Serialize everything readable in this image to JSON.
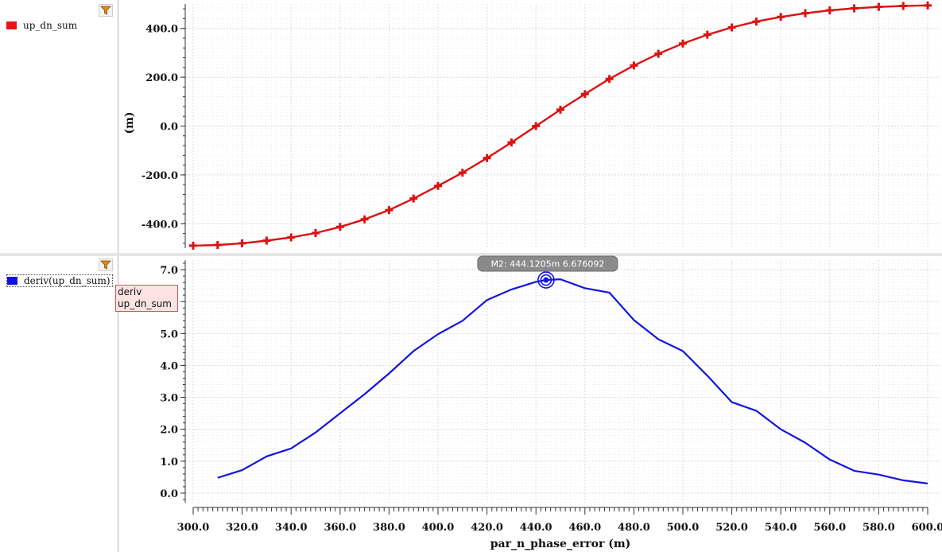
{
  "legend": {
    "top": {
      "label": "up_dn_sum",
      "color": "#ee1111"
    },
    "bottom": {
      "label": "deriv(up_dn_sum)",
      "color": "#1111dd"
    }
  },
  "icons": {
    "filter": "filter-funnel-icon"
  },
  "tag": {
    "line1": "deriv",
    "line2": "up_dn_sum"
  },
  "chart_data": [
    {
      "type": "line",
      "title": "",
      "xlabel": "par_n_phase_error (m)",
      "ylabel": "(m)",
      "xlim": [
        300,
        600
      ],
      "ylim": [
        -500,
        500
      ],
      "ytick_labels": [
        "-400.0",
        "-200.0",
        "0.0",
        "200.0",
        "400.0"
      ],
      "grid": true,
      "series": [
        {
          "name": "up_dn_sum",
          "color": "#dd1111",
          "markers": "plus",
          "x": [
            300,
            310,
            320,
            330,
            340,
            350,
            360,
            370,
            380,
            390,
            400,
            410,
            420,
            430,
            440,
            450,
            460,
            470,
            480,
            490,
            500,
            510,
            520,
            530,
            540,
            550,
            560,
            570,
            580,
            590,
            600
          ],
          "y": [
            -490,
            -487,
            -480,
            -469,
            -456,
            -438,
            -413,
            -382,
            -344,
            -297,
            -245,
            -191,
            -131,
            -67,
            0,
            67,
            131,
            193,
            248,
            296,
            338,
            374,
            404,
            428,
            447,
            462,
            474,
            482,
            488,
            492,
            494
          ]
        }
      ]
    },
    {
      "type": "line",
      "title": "",
      "xlabel": "par_n_phase_error (m)",
      "ylabel": "",
      "xlim": [
        300,
        600
      ],
      "ylim": [
        -0.3,
        7.3
      ],
      "ytick_labels": [
        "0.0",
        "1.0",
        "2.0",
        "3.0",
        "4.0",
        "5.0",
        "6.0",
        "7.0"
      ],
      "xtick_labels": [
        "300.0",
        "320.0",
        "340.0",
        "360.0",
        "380.0",
        "400.0",
        "420.0",
        "440.0",
        "460.0",
        "480.0",
        "500.0",
        "520.0",
        "540.0",
        "560.0",
        "580.0",
        "600.0"
      ],
      "grid": true,
      "series": [
        {
          "name": "deriv(up_dn_sum)",
          "color": "#1414e0",
          "x": [
            310,
            320,
            330,
            340,
            350,
            360,
            370,
            380,
            390,
            400,
            410,
            420,
            430,
            440,
            444.12,
            450,
            460,
            470,
            480,
            490,
            500,
            510,
            520,
            530,
            540,
            550,
            560,
            570,
            580,
            590,
            600
          ],
          "y": [
            0.48,
            0.72,
            1.15,
            1.4,
            1.9,
            2.5,
            3.1,
            3.75,
            4.45,
            4.98,
            5.4,
            6.05,
            6.38,
            6.62,
            6.676,
            6.7,
            6.42,
            6.28,
            5.42,
            4.82,
            4.45,
            3.68,
            2.85,
            2.58,
            2.0,
            1.58,
            1.05,
            0.7,
            0.58,
            0.4,
            0.3
          ]
        }
      ],
      "marker": {
        "label": "M2: 444.1205m 6.676092",
        "x": 444.1205,
        "y": 6.676092
      }
    }
  ]
}
